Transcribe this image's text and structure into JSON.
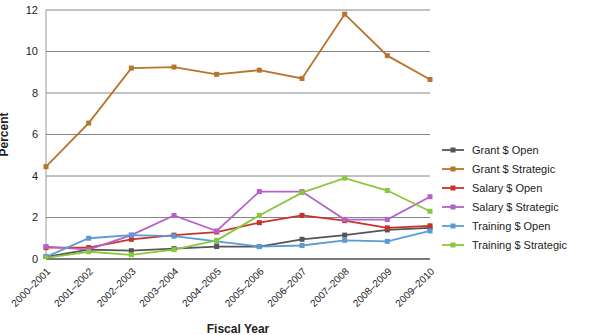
{
  "chart_data": {
    "type": "line",
    "x_label": "Fiscal Year",
    "y_label": "Percent",
    "categories": [
      "2000–2001",
      "2001–2002",
      "2002–2003",
      "2003–2004",
      "2004–2005",
      "2005–2006",
      "2006–2007",
      "2007–2008",
      "2008–2009",
      "2009–2010"
    ],
    "series": [
      {
        "name": "Grant $ Open",
        "color": "#555555",
        "values": [
          0.1,
          0.45,
          0.4,
          0.5,
          0.6,
          0.6,
          0.95,
          1.15,
          1.4,
          1.5
        ]
      },
      {
        "name": "Grant $ Strategic",
        "color": "#b8732e",
        "values": [
          4.45,
          6.55,
          9.2,
          9.25,
          8.9,
          9.1,
          8.7,
          11.8,
          9.8,
          8.65
        ]
      },
      {
        "name": "Salary $ Open",
        "color": "#c8322d",
        "values": [
          0.55,
          0.55,
          0.95,
          1.15,
          1.3,
          1.75,
          2.1,
          1.85,
          1.5,
          1.6
        ]
      },
      {
        "name": "Salary $ Strategic",
        "color": "#b462c8",
        "values": [
          0.6,
          0.45,
          1.15,
          2.1,
          1.35,
          3.25,
          3.25,
          1.9,
          1.9,
          3.0
        ]
      },
      {
        "name": "Training $ Open",
        "color": "#5b9bd5",
        "values": [
          0.1,
          1.0,
          1.15,
          1.1,
          0.85,
          0.6,
          0.65,
          0.9,
          0.85,
          1.35
        ]
      },
      {
        "name": "Training $ Strategic",
        "color": "#8cc63f",
        "values": [
          0.05,
          0.35,
          0.2,
          0.45,
          0.9,
          2.1,
          3.2,
          3.9,
          3.3,
          2.3
        ]
      }
    ],
    "ylim": [
      0,
      12
    ],
    "yticks": [
      0,
      2,
      4,
      6,
      8,
      10,
      12
    ],
    "grid": true,
    "legend": "right",
    "marker": "square"
  }
}
